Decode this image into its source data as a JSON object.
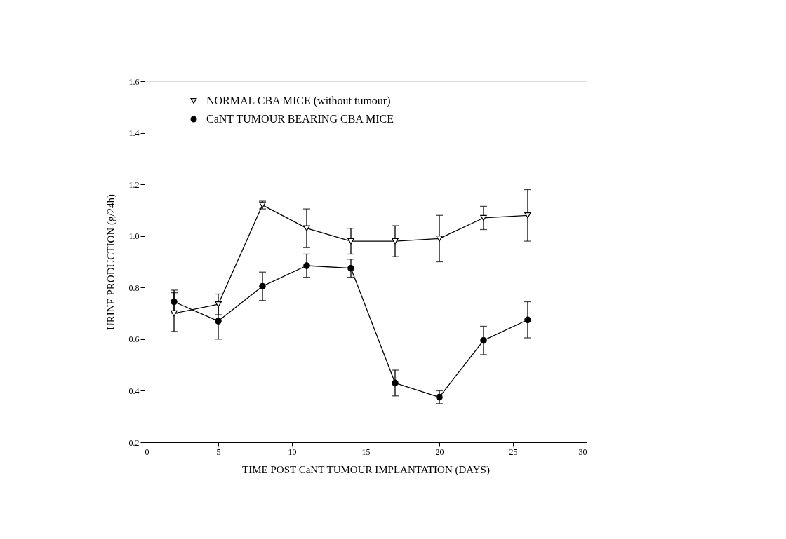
{
  "chart_data": {
    "type": "line",
    "xlabel": "TIME POST CaNT TUMOUR IMPLANTATION (DAYS)",
    "ylabel": "URINE PRODUCTION (g/24h)",
    "x": [
      2,
      5,
      8,
      11,
      14,
      17,
      20,
      23,
      26
    ],
    "series": [
      {
        "name": "NORMAL CBA MICE (without tumour)",
        "color": "#000000",
        "marker": "triangle",
        "values": [
          0.7,
          0.735,
          1.12,
          1.03,
          0.98,
          0.98,
          0.99,
          1.07,
          1.08
        ],
        "errors": [
          [
            0.63,
            0.78
          ],
          0.04,
          0.015,
          0.075,
          0.05,
          0.06,
          0.09,
          0.045,
          0.1
        ]
      },
      {
        "name": "CaNT TUMOUR BEARING CBA MICE",
        "color": "#000000",
        "marker": "circle",
        "values": [
          0.745,
          0.67,
          0.805,
          0.885,
          0.875,
          0.43,
          0.375,
          0.595,
          0.675
        ],
        "errors": [
          0.045,
          0.07,
          0.055,
          0.045,
          0.035,
          0.05,
          0.025,
          0.055,
          0.07
        ]
      }
    ],
    "xlim": [
      0,
      30
    ],
    "xticks": [
      0,
      5,
      10,
      15,
      20,
      25,
      30
    ],
    "ylim": [
      0.2,
      1.6
    ],
    "yticks": [
      0.2,
      0.4,
      0.6,
      0.8,
      {
        "value": 1.0,
        "label": "1.0"
      },
      1.2,
      1.4,
      1.6
    ],
    "grid": false,
    "legend": "top left",
    "line_style": "solid"
  }
}
